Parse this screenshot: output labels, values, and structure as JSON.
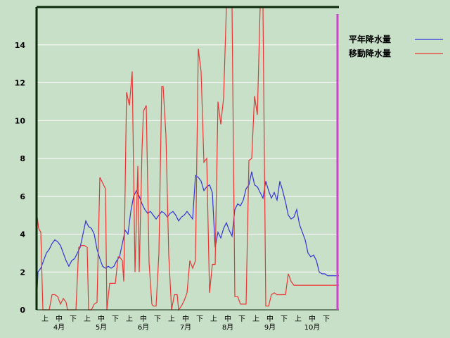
{
  "chart_data": {
    "type": "line",
    "ylim": [
      0,
      16
    ],
    "yticks": [
      0,
      2,
      4,
      6,
      8,
      10,
      12,
      14
    ],
    "grid": true,
    "legend": "top-right",
    "x_labels": [
      {
        "x": 0.5,
        "text": "上",
        "row": 1
      },
      {
        "x": 1.5,
        "text": "中",
        "row": 1
      },
      {
        "x": 2.5,
        "text": "下",
        "row": 1
      },
      {
        "x": 1.5,
        "text": "4月",
        "row": 2
      },
      {
        "x": 3.5,
        "text": "上",
        "row": 1
      },
      {
        "x": 4.5,
        "text": "中",
        "row": 1
      },
      {
        "x": 5.5,
        "text": "下",
        "row": 1
      },
      {
        "x": 4.5,
        "text": "5月",
        "row": 2
      },
      {
        "x": 6.5,
        "text": "上",
        "row": 1
      },
      {
        "x": 7.5,
        "text": "中",
        "row": 1
      },
      {
        "x": 8.5,
        "text": "下",
        "row": 1
      },
      {
        "x": 7.5,
        "text": "6月",
        "row": 2
      },
      {
        "x": 9.5,
        "text": "上",
        "row": 1
      },
      {
        "x": 10.5,
        "text": "中",
        "row": 1
      },
      {
        "x": 11.5,
        "text": "下",
        "row": 1
      },
      {
        "x": 10.5,
        "text": "7月",
        "row": 2
      },
      {
        "x": 12.5,
        "text": "上",
        "row": 1
      },
      {
        "x": 13.5,
        "text": "中",
        "row": 1
      },
      {
        "x": 14.5,
        "text": "下",
        "row": 1
      },
      {
        "x": 13.5,
        "text": "8月",
        "row": 2
      },
      {
        "x": 15.5,
        "text": "上",
        "row": 1
      },
      {
        "x": 16.5,
        "text": "中",
        "row": 1
      },
      {
        "x": 17.5,
        "text": "下",
        "row": 1
      },
      {
        "x": 16.5,
        "text": "9月",
        "row": 2
      },
      {
        "x": 18.5,
        "text": "上",
        "row": 1
      },
      {
        "x": 19.5,
        "text": "中",
        "row": 1
      },
      {
        "x": 20.5,
        "text": "下",
        "row": 1
      },
      {
        "x": 19.5,
        "text": "10月",
        "row": 2
      }
    ],
    "xlim": [
      0,
      21.5
    ],
    "current_marker_x": 21.4,
    "series": [
      {
        "name": "平年降水量",
        "color": "#3333dd",
        "x": [
          0.0,
          0.1,
          0.3,
          0.5,
          0.7,
          0.9,
          1.1,
          1.3,
          1.5,
          1.7,
          1.9,
          2.1,
          2.3,
          2.5,
          2.7,
          2.9,
          3.1,
          3.3,
          3.5,
          3.7,
          3.9,
          4.1,
          4.3,
          4.5,
          4.7,
          4.9,
          5.1,
          5.3,
          5.5,
          5.7,
          5.9,
          6.1,
          6.3,
          6.5,
          6.7,
          6.9,
          7.1,
          7.3,
          7.5,
          7.7,
          7.9,
          8.1,
          8.3,
          8.5,
          8.7,
          8.9,
          9.1,
          9.3,
          9.5,
          9.7,
          9.9,
          10.1,
          10.3,
          10.5,
          10.7,
          10.9,
          11.1,
          11.3,
          11.5,
          11.7,
          11.9,
          12.1,
          12.3,
          12.5,
          12.7,
          12.9,
          13.1,
          13.3,
          13.5,
          13.7,
          13.9,
          14.1,
          14.3,
          14.5,
          14.7,
          14.9,
          15.1,
          15.3,
          15.5,
          15.7,
          15.9,
          16.1,
          16.3,
          16.5,
          16.7,
          16.9,
          17.1,
          17.3,
          17.5,
          17.7,
          17.9,
          18.1,
          18.3,
          18.5,
          18.7,
          18.9,
          19.1,
          19.3,
          19.5,
          19.7,
          19.9,
          20.1,
          20.3,
          20.5,
          20.7,
          20.9,
          21.1,
          21.3,
          21.5
        ],
        "values": [
          0.3,
          2.0,
          2.2,
          2.6,
          3.0,
          3.2,
          3.5,
          3.7,
          3.6,
          3.4,
          3.0,
          2.6,
          2.3,
          2.6,
          2.7,
          3.0,
          3.3,
          4.0,
          4.7,
          4.4,
          4.3,
          4.0,
          3.2,
          2.7,
          2.3,
          2.2,
          2.3,
          2.2,
          2.3,
          2.6,
          2.8,
          3.5,
          4.2,
          4.0,
          5.2,
          6.0,
          6.3,
          6.0,
          5.6,
          5.3,
          5.1,
          5.2,
          5.0,
          4.8,
          5.0,
          5.2,
          5.1,
          4.9,
          5.1,
          5.2,
          5.0,
          4.7,
          4.9,
          5.0,
          5.2,
          5.0,
          4.8,
          7.1,
          7.0,
          6.8,
          6.3,
          6.5,
          6.6,
          6.2,
          3.3,
          4.1,
          3.8,
          4.3,
          4.6,
          4.2,
          3.9,
          5.3,
          5.6,
          5.5,
          5.8,
          6.4,
          6.6,
          7.3,
          6.6,
          6.5,
          6.2,
          5.9,
          6.8,
          6.3,
          5.9,
          6.2,
          5.8,
          6.8,
          6.3,
          5.7,
          5.0,
          4.8,
          4.9,
          5.3,
          4.5,
          4.1,
          3.7,
          3.0,
          2.8,
          2.9,
          2.6,
          2.0,
          1.9,
          1.9,
          1.8,
          1.8,
          1.8,
          1.8,
          1.8
        ]
      },
      {
        "name": "移動降水量",
        "color": "#ee3333",
        "x": [
          0.0,
          0.05,
          0.15,
          0.3,
          0.45,
          0.55,
          0.7,
          0.9,
          1.1,
          1.3,
          1.5,
          1.7,
          1.9,
          2.1,
          2.2,
          2.4,
          2.6,
          2.8,
          3.0,
          3.2,
          3.4,
          3.6,
          3.7,
          3.9,
          4.1,
          4.3,
          4.5,
          4.7,
          4.9,
          5.0,
          5.2,
          5.4,
          5.6,
          5.8,
          5.9,
          6.1,
          6.2,
          6.4,
          6.6,
          6.8,
          7.0,
          7.2,
          7.3,
          7.5,
          7.6,
          7.8,
          8.0,
          8.2,
          8.3,
          8.5,
          8.7,
          8.9,
          9.0,
          9.2,
          9.4,
          9.6,
          9.8,
          10.0,
          10.1,
          10.3,
          10.5,
          10.7,
          10.9,
          11.1,
          11.3,
          11.5,
          11.7,
          11.9,
          12.1,
          12.3,
          12.5,
          12.7,
          12.9,
          13.1,
          13.3,
          13.5,
          13.7,
          13.9,
          14.1,
          14.3,
          14.5,
          14.7,
          14.9,
          15.1,
          15.3,
          15.5,
          15.7,
          15.9,
          16.1,
          16.3,
          16.5,
          16.7,
          16.9,
          17.1,
          17.3,
          17.5,
          17.7,
          17.9,
          18.1,
          18.3,
          18.5,
          18.7,
          18.9,
          19.1,
          19.3,
          19.5,
          19.7,
          19.9,
          20.1,
          20.3,
          20.5,
          20.7,
          20.9,
          21.1,
          21.3,
          21.5
        ],
        "values": [
          0.0,
          4.9,
          4.3,
          4.1,
          0.0,
          0.0,
          0.0,
          0.0,
          0.8,
          0.8,
          0.7,
          0.3,
          0.6,
          0.4,
          0.0,
          0.0,
          0.0,
          0.0,
          3.3,
          3.4,
          3.4,
          3.3,
          0.0,
          0.0,
          0.3,
          0.4,
          7.0,
          6.7,
          6.4,
          0.0,
          1.4,
          1.4,
          1.4,
          2.8,
          2.8,
          2.6,
          1.5,
          11.5,
          10.8,
          12.6,
          2.0,
          7.6,
          2.0,
          8.5,
          10.5,
          10.8,
          2.5,
          0.3,
          0.2,
          0.2,
          3.0,
          11.8,
          11.8,
          9.2,
          2.9,
          0.0,
          0.8,
          0.8,
          0.0,
          0.2,
          0.5,
          0.9,
          2.6,
          2.2,
          2.6,
          13.8,
          12.6,
          7.8,
          8.0,
          0.9,
          2.4,
          2.4,
          11.0,
          9.8,
          11.2,
          16.5,
          16.1,
          16.1,
          0.7,
          0.7,
          0.3,
          0.3,
          0.3,
          7.9,
          8.0,
          11.3,
          10.3,
          16.5,
          16.5,
          0.2,
          0.2,
          0.8,
          0.9,
          0.8,
          0.8,
          0.8,
          0.8,
          1.9,
          1.5,
          1.3,
          1.3,
          1.3,
          1.3,
          1.3,
          1.3,
          1.3,
          1.3,
          1.3,
          1.3,
          1.3,
          1.3,
          1.3,
          1.3,
          1.3,
          1.3,
          1.3
        ]
      }
    ]
  }
}
